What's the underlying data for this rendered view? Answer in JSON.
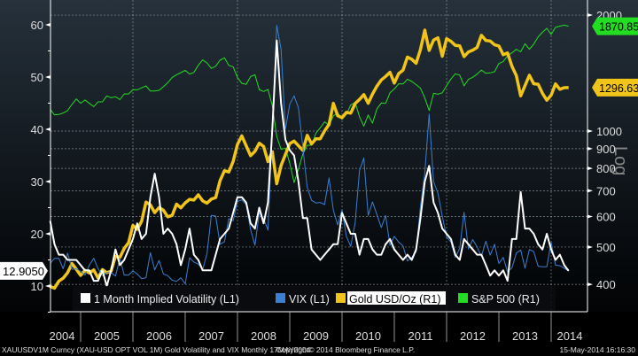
{
  "chart_data": {
    "type": "line",
    "x_start": "2004-06",
    "frequency": "monthly",
    "x_tick_labels": [
      "2004",
      "2005",
      "2006",
      "2007",
      "2008",
      "2009",
      "2010",
      "2011",
      "2012",
      "2013",
      "2014"
    ],
    "left_axis": {
      "ticks": [
        10,
        20,
        30,
        40,
        50,
        60
      ],
      "range": [
        5,
        65
      ],
      "scale": "linear"
    },
    "right_axis": {
      "ticks": [
        400,
        500,
        600,
        700,
        800,
        900,
        1000,
        2000
      ],
      "range": [
        340,
        2100
      ],
      "scale": "log",
      "label": "Log"
    },
    "grid": true,
    "legend_position": "bottom-left",
    "series": [
      {
        "name": "1 Month Implied Volatility (L1)",
        "axis": "left",
        "color": "#ffffff",
        "last_label": "12.9050",
        "values": [
          22.5,
          18,
          16,
          16,
          15,
          15,
          15,
          14,
          13,
          13,
          11,
          11,
          13,
          10,
          13,
          17,
          14,
          15,
          17,
          19,
          22,
          19,
          20,
          27,
          31.5,
          27,
          20,
          21,
          20,
          18,
          14,
          17,
          21,
          16,
          15,
          13,
          13,
          13,
          16,
          19,
          20,
          21,
          24,
          27,
          27,
          26,
          22,
          21,
          25,
          22,
          26,
          40,
          57,
          45,
          38,
          36,
          35,
          30,
          23,
          23,
          17,
          16,
          15,
          16,
          17,
          18,
          18,
          24,
          22,
          20,
          20,
          16,
          19,
          19,
          17,
          16,
          16,
          18,
          19,
          17,
          16,
          15,
          16,
          15,
          17,
          23,
          30,
          33,
          26,
          24,
          21,
          20,
          19,
          16,
          15,
          19,
          18,
          17,
          16,
          16,
          14,
          12,
          13,
          12,
          13,
          11,
          19,
          19,
          28,
          21,
          21,
          20,
          18,
          17,
          20,
          17,
          15,
          16,
          14,
          12.905
        ]
      },
      {
        "name": "VIX (L1)",
        "axis": "left",
        "color": "#3a7fd0",
        "values": [
          14.3,
          15.3,
          15.3,
          13.3,
          16.3,
          13.2,
          13.3,
          12.8,
          12.1,
          14.0,
          15.3,
          13.3,
          12.0,
          12.6,
          12.6,
          11.9,
          15.3,
          12.1,
          12.1,
          12.9,
          12.3,
          11.4,
          11.6,
          16.4,
          13.1,
          14.9,
          12.3,
          12.0,
          11.1,
          10.9,
          11.6,
          10.4,
          15.4,
          14.6,
          14.2,
          13.1,
          16.2,
          23.5,
          23.4,
          18.0,
          18.5,
          22.9,
          22.5,
          26.2,
          26.5,
          25.6,
          20.8,
          17.8,
          24.0,
          22.9,
          20.7,
          39.4,
          59.9,
          55.3,
          40.0,
          44.8,
          46.4,
          44.1,
          36.5,
          28.9,
          26.4,
          25.9,
          26.0,
          25.6,
          30.7,
          24.5,
          21.7,
          24.6,
          19.5,
          17.6,
          22.1,
          32.1,
          34.5,
          23.5,
          26.1,
          23.7,
          21.2,
          23.5,
          17.8,
          19.5,
          18.4,
          17.7,
          14.8,
          15.5,
          16.5,
          25.3,
          31.6,
          42.9,
          30.0,
          27.8,
          23.4,
          19.4,
          18.4,
          15.5,
          17.2,
          24.1,
          17.1,
          18.9,
          17.5,
          15.7,
          18.6,
          15.9,
          18.0,
          14.3,
          15.5,
          12.7,
          13.5,
          16.3,
          16.9,
          13.4,
          17.0,
          16.6,
          13.8,
          13.7,
          13.7,
          18.4,
          14.0,
          13.9,
          13.4,
          12.9
        ]
      },
      {
        "name": "Gold USD/Oz (R1)",
        "axis": "right",
        "color": "#f0c419",
        "last_label": "1296.63",
        "values": [
          395,
          391,
          408,
          415,
          429,
          453,
          438,
          422,
          435,
          428,
          436,
          415,
          437,
          429,
          433,
          473,
          470,
          496,
          513,
          569,
          556,
          583,
          654,
          643,
          614,
          633,
          623,
          599,
          604,
          646,
          632,
          651,
          665,
          662,
          683,
          659,
          650,
          666,
          672,
          743,
          789,
          783,
          834,
          923,
          972,
          916,
          863,
          886,
          930,
          912,
          833,
          884,
          730,
          814,
          869,
          928,
          942,
          916,
          891,
          975,
          926,
          955,
          955,
          1001,
          1040,
          1180,
          1096,
          1083,
          1118,
          1113,
          1179,
          1208,
          1244,
          1181,
          1248,
          1307,
          1357,
          1386,
          1421,
          1332,
          1410,
          1439,
          1556,
          1536,
          1500,
          1628,
          1828,
          1620,
          1722,
          1746,
          1564,
          1737,
          1710,
          1669,
          1664,
          1561,
          1604,
          1622,
          1648,
          1772,
          1719,
          1713,
          1675,
          1663,
          1578,
          1595,
          1472,
          1393,
          1234,
          1312,
          1396,
          1327,
          1323,
          1253,
          1202,
          1240,
          1326,
          1284,
          1296,
          1296.63
        ]
      },
      {
        "name": "S&P 500 (R1)",
        "axis": "right",
        "color": "#22dd22",
        "last_label": "1870.85",
        "values": [
          1140,
          1101,
          1104,
          1114,
          1130,
          1173,
          1212,
          1181,
          1204,
          1180,
          1157,
          1191,
          1191,
          1234,
          1220,
          1228,
          1207,
          1249,
          1248,
          1280,
          1280,
          1295,
          1310,
          1270,
          1270,
          1276,
          1304,
          1335,
          1377,
          1400,
          1418,
          1438,
          1406,
          1420,
          1482,
          1530,
          1503,
          1455,
          1473,
          1527,
          1549,
          1481,
          1468,
          1378,
          1330,
          1322,
          1385,
          1400,
          1280,
          1267,
          1282,
          1166,
          968,
          896,
          903,
          825,
          735,
          797,
          872,
          919,
          919,
          987,
          1020,
          1057,
          1036,
          1095,
          1115,
          1073,
          1104,
          1169,
          1186,
          1089,
          1030,
          1101,
          1049,
          1141,
          1183,
          1180,
          1257,
          1286,
          1327,
          1325,
          1363,
          1345,
          1320,
          1292,
          1218,
          1131,
          1253,
          1246,
          1257,
          1312,
          1365,
          1408,
          1397,
          1310,
          1362,
          1379,
          1406,
          1440,
          1412,
          1416,
          1426,
          1498,
          1514,
          1569,
          1597,
          1630,
          1606,
          1685,
          1632,
          1681,
          1756,
          1805,
          1848,
          1782,
          1859,
          1872,
          1883,
          1870.85
        ]
      }
    ]
  },
  "footer": {
    "left": "XAUUSDV1M Curncy (XAU-USD OPT VOL 1M) Gold Volatility and VIX  Monthly 17MAY2004",
    "center": "Copyright© 2014 Bloomberg Finance L.P.",
    "right": "15-May-2014 16:16:30"
  }
}
